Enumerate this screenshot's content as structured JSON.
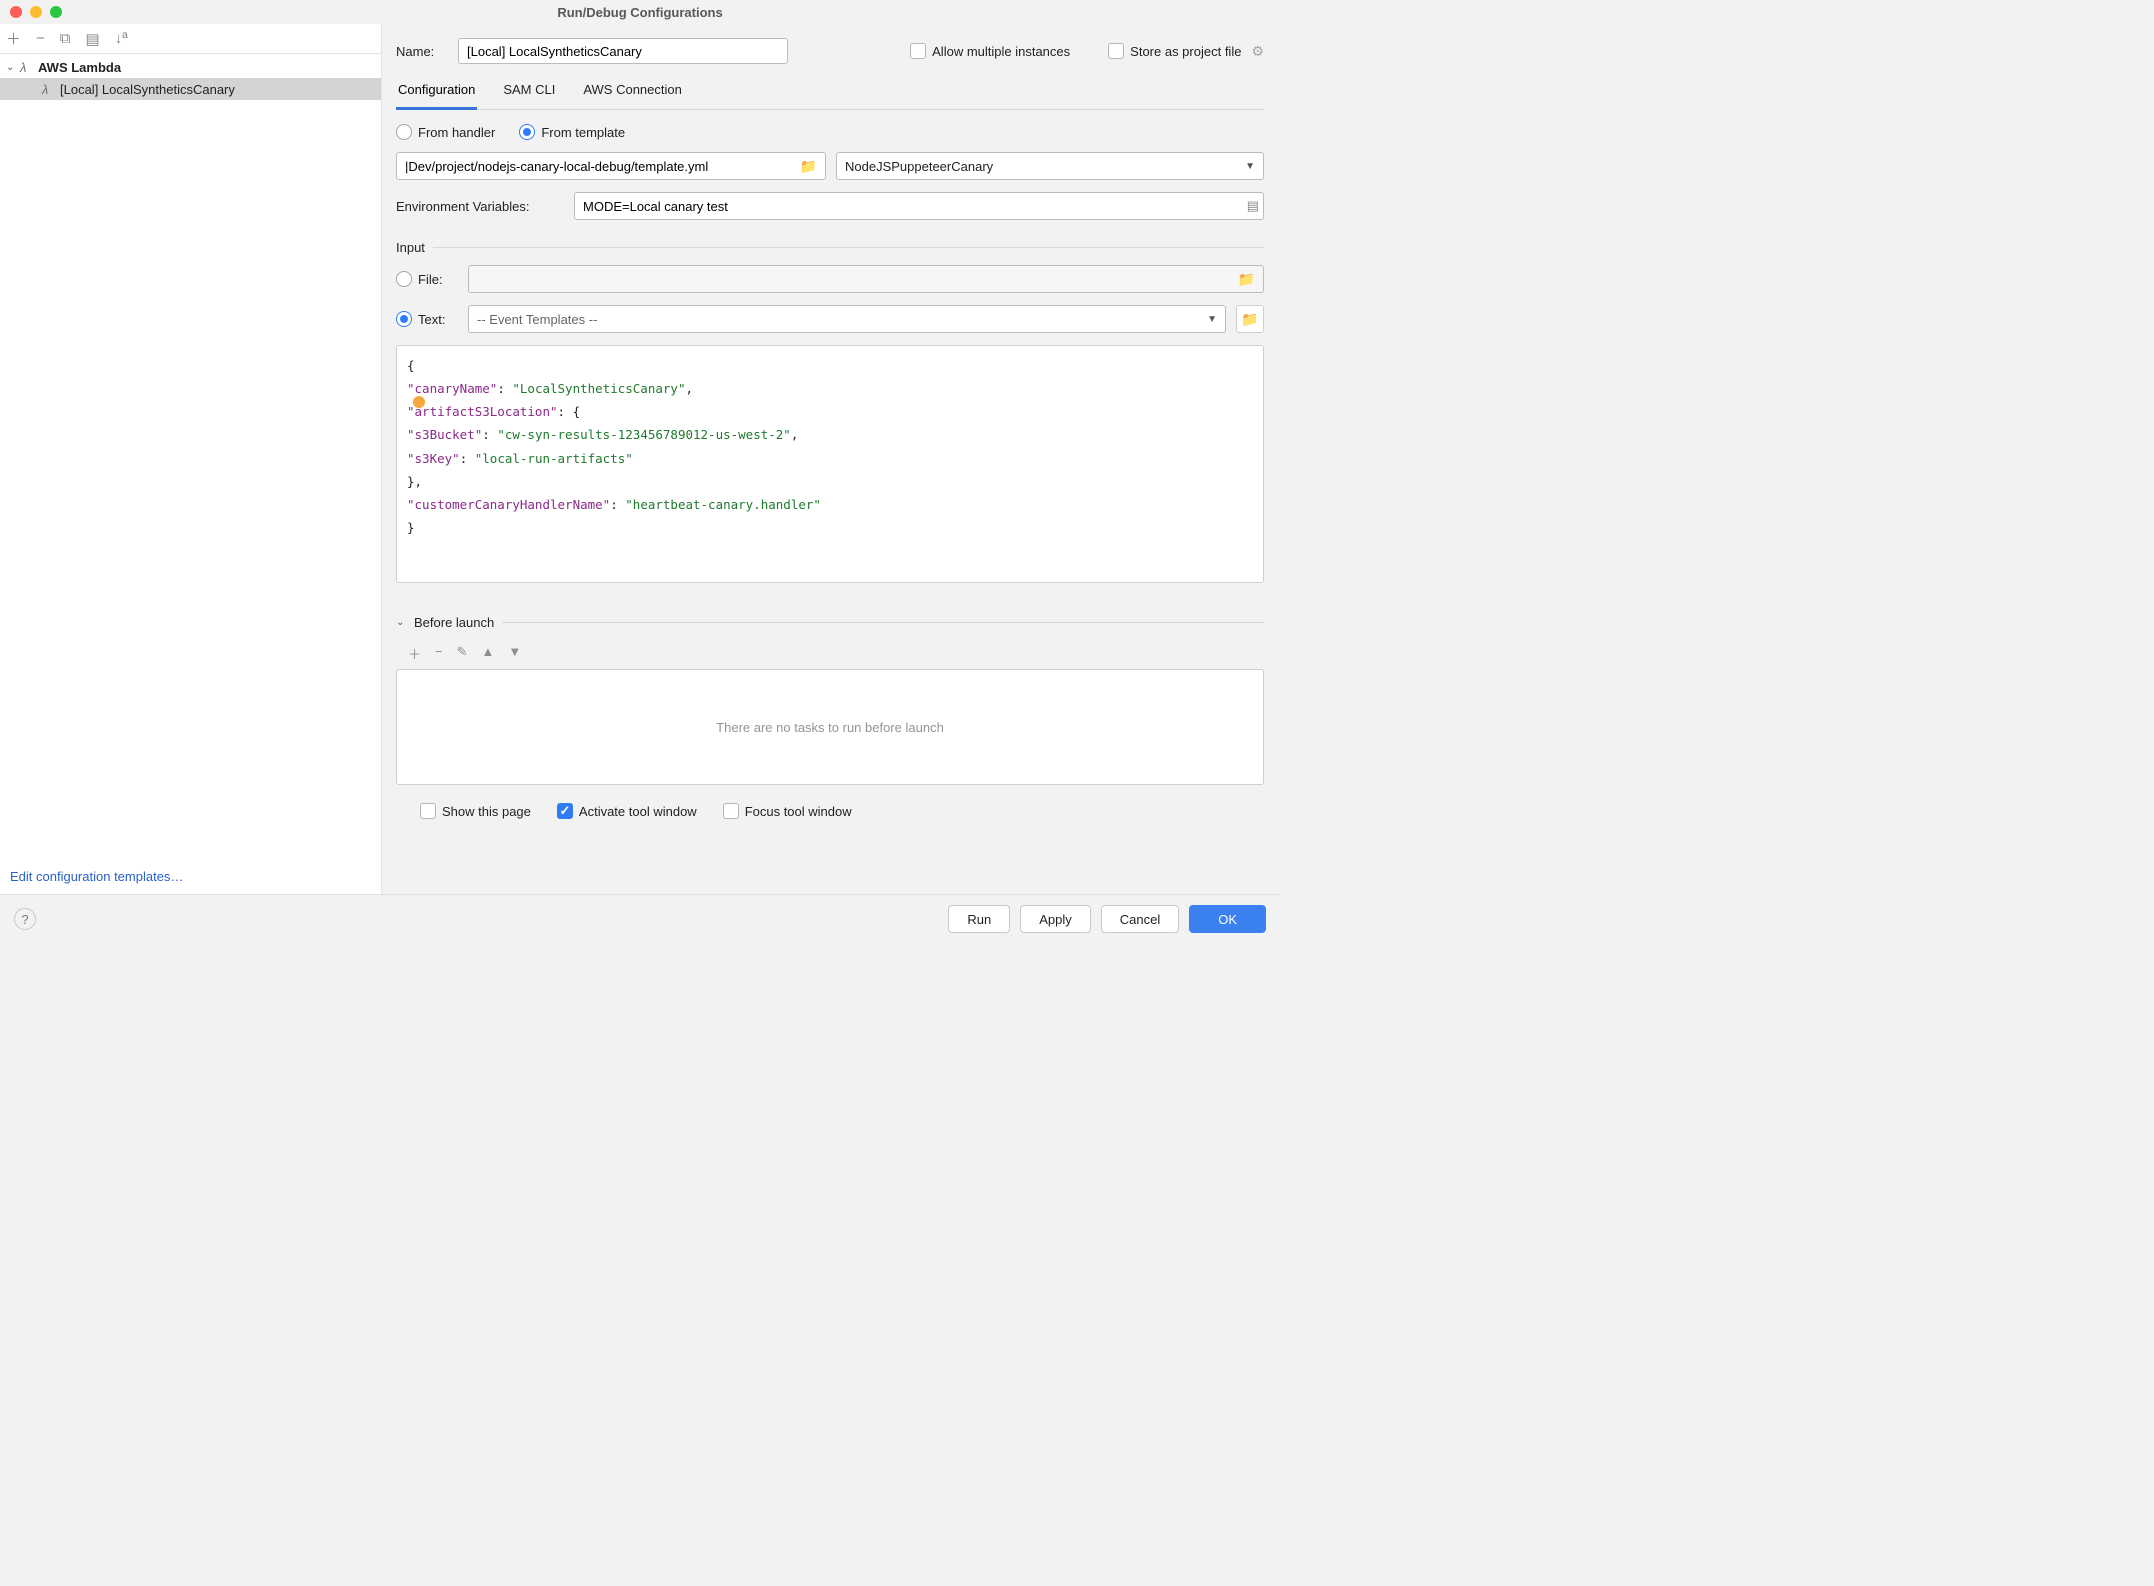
{
  "window": {
    "title": "Run/Debug Configurations"
  },
  "sidebar": {
    "root_label": "AWS Lambda",
    "item_label": "[Local] LocalSyntheticsCanary",
    "edit_templates_link": "Edit configuration templates…"
  },
  "form": {
    "name_label": "Name:",
    "name_value": "[Local] LocalSyntheticsCanary",
    "allow_multiple_label": "Allow multiple instances",
    "allow_multiple_checked": false,
    "store_as_file_label": "Store as project file",
    "store_as_file_checked": false
  },
  "tabs": {
    "items": [
      {
        "label": "Configuration",
        "active": true
      },
      {
        "label": "SAM CLI",
        "active": false
      },
      {
        "label": "AWS Connection",
        "active": false
      }
    ]
  },
  "source": {
    "from_handler_label": "From handler",
    "from_template_label": "From template",
    "selected": "template",
    "template_path": "|Dev/project/nodejs-canary-local-debug/template.yml",
    "function_name": "NodeJSPuppeteerCanary"
  },
  "env": {
    "label": "Environment Variables:",
    "value": "MODE=Local canary test"
  },
  "input": {
    "section_label": "Input",
    "file_label": "File:",
    "text_label": "Text:",
    "selected": "text",
    "event_templates_placeholder": "-- Event Templates --",
    "json_raw": "{\n \"canaryName\": \"LocalSyntheticsCanary\",\n \"artifactS3Location\": {\n  \"s3Bucket\": \"cw-syn-results-123456789012-us-west-2\",\n  \"s3Key\": \"local-run-artifacts\"\n },\n \"customerCanaryHandlerName\": \"heartbeat-canary.handler\"\n}",
    "json_tokens": [
      [
        {
          "t": "p",
          "v": "{"
        }
      ],
      [
        {
          "t": "p",
          "v": " "
        },
        {
          "t": "k",
          "v": "\"canaryName\""
        },
        {
          "t": "p",
          "v": ": "
        },
        {
          "t": "s",
          "v": "\"LocalSyntheticsCanary\""
        },
        {
          "t": "p",
          "v": ","
        }
      ],
      [
        {
          "t": "p",
          "v": " "
        },
        {
          "t": "k",
          "v": "\"artifactS3Location\""
        },
        {
          "t": "p",
          "v": ": {"
        }
      ],
      [
        {
          "t": "p",
          "v": "  "
        },
        {
          "t": "k",
          "v": "\"s3Bucket\""
        },
        {
          "t": "p",
          "v": ": "
        },
        {
          "t": "s",
          "v": "\"cw-syn-results-123456789012-us-west-2\""
        },
        {
          "t": "p",
          "v": ","
        }
      ],
      [
        {
          "t": "p",
          "v": "  "
        },
        {
          "t": "k",
          "v": "\"s3Key\""
        },
        {
          "t": "p",
          "v": ": "
        },
        {
          "t": "s",
          "v": "\"local-run-artifacts\""
        }
      ],
      [
        {
          "t": "p",
          "v": " },"
        }
      ],
      [
        {
          "t": "p",
          "v": " "
        },
        {
          "t": "k",
          "v": "\"customerCanaryHandlerName\""
        },
        {
          "t": "p",
          "v": ": "
        },
        {
          "t": "s",
          "v": "\"heartbeat-canary.handler\""
        }
      ],
      [
        {
          "t": "p",
          "v": "}"
        }
      ]
    ]
  },
  "before_launch": {
    "section_label": "Before launch",
    "empty_text": "There are no tasks to run before launch"
  },
  "options": {
    "show_page_label": "Show this page",
    "show_page_checked": false,
    "activate_tool_label": "Activate tool window",
    "activate_tool_checked": true,
    "focus_tool_label": "Focus tool window",
    "focus_tool_checked": false
  },
  "buttons": {
    "run": "Run",
    "apply": "Apply",
    "cancel": "Cancel",
    "ok": "OK"
  },
  "colors": {
    "accent": "#3b82f0",
    "json_key": "#8b298b",
    "json_str": "#1f7a2e",
    "link": "#2962c9",
    "muted": "#949494"
  }
}
